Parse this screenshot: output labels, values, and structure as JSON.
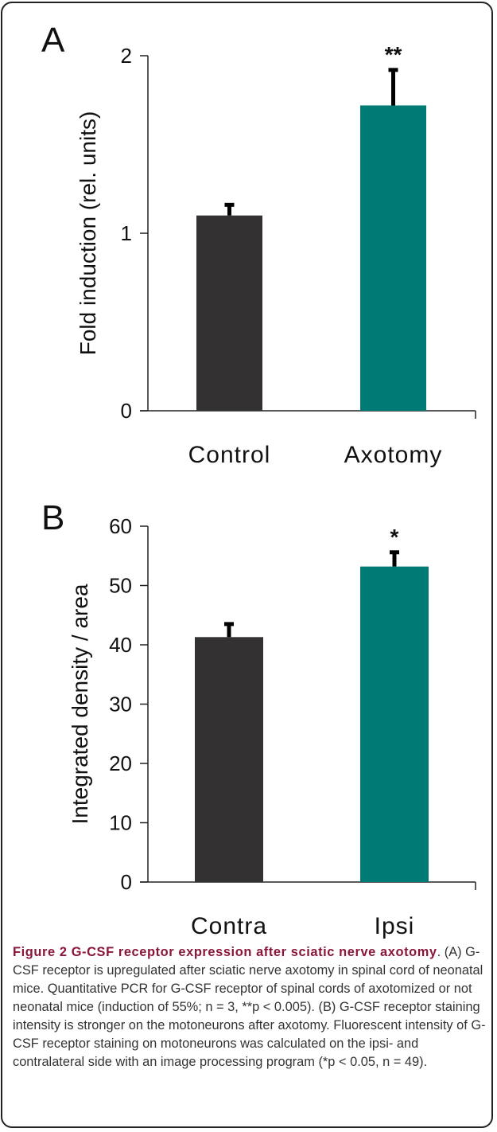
{
  "colors": {
    "control": "#333132",
    "treated": "#007a74",
    "axis": "#222222",
    "caption_title": "#8a1538"
  },
  "chart_data": [
    {
      "panel": "A",
      "type": "bar",
      "title": "",
      "xlabel": "",
      "ylabel": "Fold induction (rel. units)",
      "ylim": [
        0,
        2
      ],
      "yticks": [
        0,
        1,
        2
      ],
      "categories": [
        "Control",
        "Axotomy"
      ],
      "values": [
        1.1,
        1.72
      ],
      "errors": [
        0.06,
        0.2
      ],
      "annotations": [
        "",
        "**"
      ],
      "grid": false
    },
    {
      "panel": "B",
      "type": "bar",
      "title": "",
      "xlabel": "",
      "ylabel": "Integrated density / area",
      "ylim": [
        0,
        60
      ],
      "yticks": [
        0,
        10,
        20,
        30,
        40,
        50,
        60
      ],
      "categories": [
        "Contra",
        "Ipsi"
      ],
      "values": [
        41.3,
        53.2
      ],
      "errors": [
        2.2,
        2.4
      ],
      "annotations": [
        "",
        "*"
      ],
      "grid": false
    }
  ],
  "caption": {
    "title": "Figure 2 G-CSF receptor expression after sciatic nerve axotomy",
    "text": ". (A) G-CSF receptor is upregulated after sciatic nerve axotomy in spinal cord of neonatal mice. Quantitative PCR for G-CSF receptor of spinal cords of axotomized or not neonatal mice (induction of 55%; n = 3, **p < 0.005). (B) G-CSF receptor staining intensity is stronger on the motoneurons after axotomy. Fluorescent intensity of G-CSF receptor staining on motoneurons was calculated on the ipsi- and contralateral side with an image processing program (*p < 0.05, n = 49)."
  }
}
